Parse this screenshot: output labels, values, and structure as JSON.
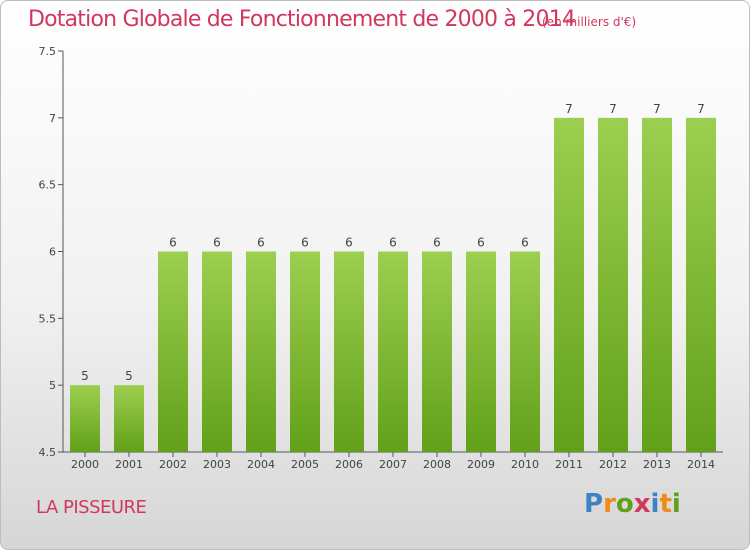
{
  "header": {
    "title": "Dotation Globale de Fonctionnement de 2000 à 2014",
    "subtitle": "(en milliers d'€)"
  },
  "footer": {
    "commune": "LA PISSEURE",
    "logo": "Proxiti"
  },
  "colors": {
    "accent": "#d2375e",
    "bar_top": "#9ccf50",
    "bar_bottom": "#62a01a",
    "logo_letters": [
      "#3b83c4",
      "#f28a1a",
      "#62a01a",
      "#d2375e",
      "#3b83c4",
      "#f28a1a",
      "#62a01a"
    ]
  },
  "chart_data": {
    "type": "bar",
    "title": "Dotation Globale de Fonctionnement de 2000 à 2014",
    "subtitle": "(en milliers d'€)",
    "xlabel": "",
    "ylabel": "",
    "categories": [
      "2000",
      "2001",
      "2002",
      "2003",
      "2004",
      "2005",
      "2006",
      "2007",
      "2008",
      "2009",
      "2010",
      "2011",
      "2012",
      "2013",
      "2014"
    ],
    "values": [
      5,
      5,
      6,
      6,
      6,
      6,
      6,
      6,
      6,
      6,
      6,
      7,
      7,
      7,
      7
    ],
    "data_labels": [
      "5",
      "5",
      "6",
      "6",
      "6",
      "6",
      "6",
      "6",
      "6",
      "6",
      "6",
      "7",
      "7",
      "7",
      "7"
    ],
    "ylim": [
      4.5,
      7.5
    ],
    "yticks": [
      "4.5",
      "5",
      "5.5",
      "6",
      "6.5",
      "7",
      "7.5"
    ],
    "grid": false,
    "legend": "none"
  }
}
